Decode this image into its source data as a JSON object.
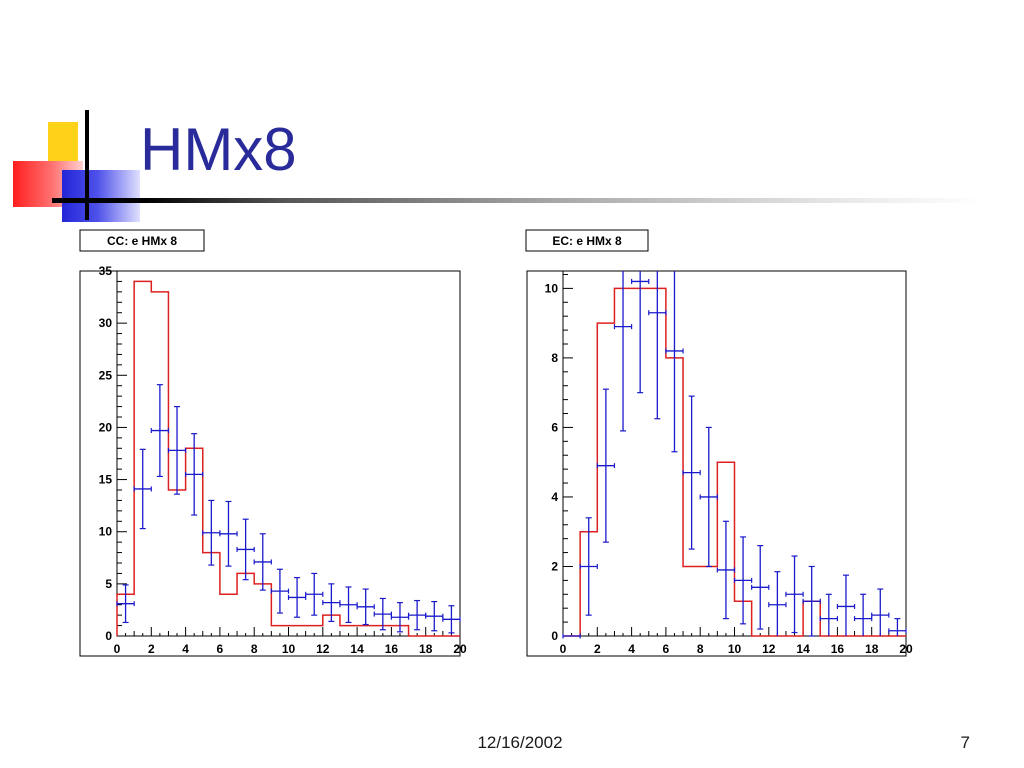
{
  "slide": {
    "title": "HMx8",
    "date": "12/16/2002",
    "page_number": "7"
  },
  "colors": {
    "title": "#2a2b9a",
    "mc_histogram": "#dd2020",
    "data_points": "#1a1acc"
  },
  "chart_data": [
    {
      "type": "histogram",
      "title": "CC: e HMx 8",
      "xlim": [
        0,
        20
      ],
      "ylim": [
        0,
        35
      ],
      "xticks": [
        0,
        2,
        4,
        6,
        8,
        10,
        12,
        14,
        16,
        18,
        20
      ],
      "yticks": [
        0,
        5,
        10,
        15,
        20,
        25,
        30,
        35
      ],
      "bin_edges": [
        0,
        1,
        2,
        3,
        4,
        5,
        6,
        7,
        8,
        9,
        10,
        11,
        12,
        13,
        14,
        15,
        16,
        17,
        18,
        19,
        20
      ],
      "series": [
        {
          "type": "step",
          "values": [
            4,
            34,
            33,
            14,
            18,
            8,
            4,
            6,
            5,
            1,
            1,
            1,
            2,
            1,
            1,
            1,
            1,
            0,
            0,
            0
          ]
        },
        {
          "type": "errorbar",
          "x": [
            0.5,
            1.5,
            2.5,
            3.5,
            4.5,
            5.5,
            6.5,
            7.5,
            8.5,
            9.5,
            10.5,
            11.5,
            12.5,
            13.5,
            14.5,
            15.5,
            16.5,
            17.5,
            18.5,
            19.5
          ],
          "y": [
            3.1,
            14.1,
            19.7,
            17.8,
            15.5,
            9.9,
            9.8,
            8.3,
            7.1,
            4.3,
            3.7,
            4.0,
            3.2,
            3.0,
            2.8,
            2.1,
            1.8,
            2.0,
            1.9,
            1.6
          ],
          "yerr": [
            1.8,
            3.8,
            4.4,
            4.2,
            3.9,
            3.1,
            3.1,
            2.9,
            2.7,
            2.1,
            1.9,
            2.0,
            1.8,
            1.7,
            1.7,
            1.5,
            1.4,
            1.4,
            1.4,
            1.3
          ]
        }
      ]
    },
    {
      "type": "histogram",
      "title": "EC: e HMx 8",
      "xlim": [
        0,
        20
      ],
      "ylim": [
        0,
        10.5
      ],
      "xticks": [
        0,
        2,
        4,
        6,
        8,
        10,
        12,
        14,
        16,
        18,
        20
      ],
      "yticks": [
        0,
        2,
        4,
        6,
        8,
        10
      ],
      "bin_edges": [
        0,
        1,
        2,
        3,
        4,
        5,
        6,
        7,
        8,
        9,
        10,
        11,
        12,
        13,
        14,
        15,
        16,
        17,
        18,
        19,
        20
      ],
      "series": [
        {
          "type": "step",
          "values": [
            0,
            3,
            9,
            10,
            10,
            10,
            8,
            2,
            2,
            5,
            1,
            0,
            0,
            0,
            1,
            0,
            0,
            0,
            0,
            0
          ]
        },
        {
          "type": "errorbar",
          "x": [
            0.5,
            1.5,
            2.5,
            3.5,
            4.5,
            5.5,
            6.5,
            7.5,
            8.5,
            9.5,
            10.5,
            11.5,
            12.5,
            13.5,
            14.5,
            15.5,
            16.5,
            17.5,
            18.5,
            19.5
          ],
          "y": [
            0,
            2.0,
            4.9,
            8.9,
            10.2,
            9.3,
            8.2,
            4.7,
            4.0,
            1.9,
            1.6,
            1.4,
            0.9,
            1.2,
            1.0,
            0.5,
            0.85,
            0.5,
            0.6,
            0.15
          ],
          "yerr": [
            0,
            1.4,
            2.2,
            3.0,
            3.2,
            3.05,
            2.9,
            2.2,
            2.0,
            1.4,
            1.25,
            1.2,
            0.95,
            1.1,
            1.0,
            0.7,
            0.9,
            0.7,
            0.75,
            0.35
          ]
        }
      ]
    }
  ]
}
